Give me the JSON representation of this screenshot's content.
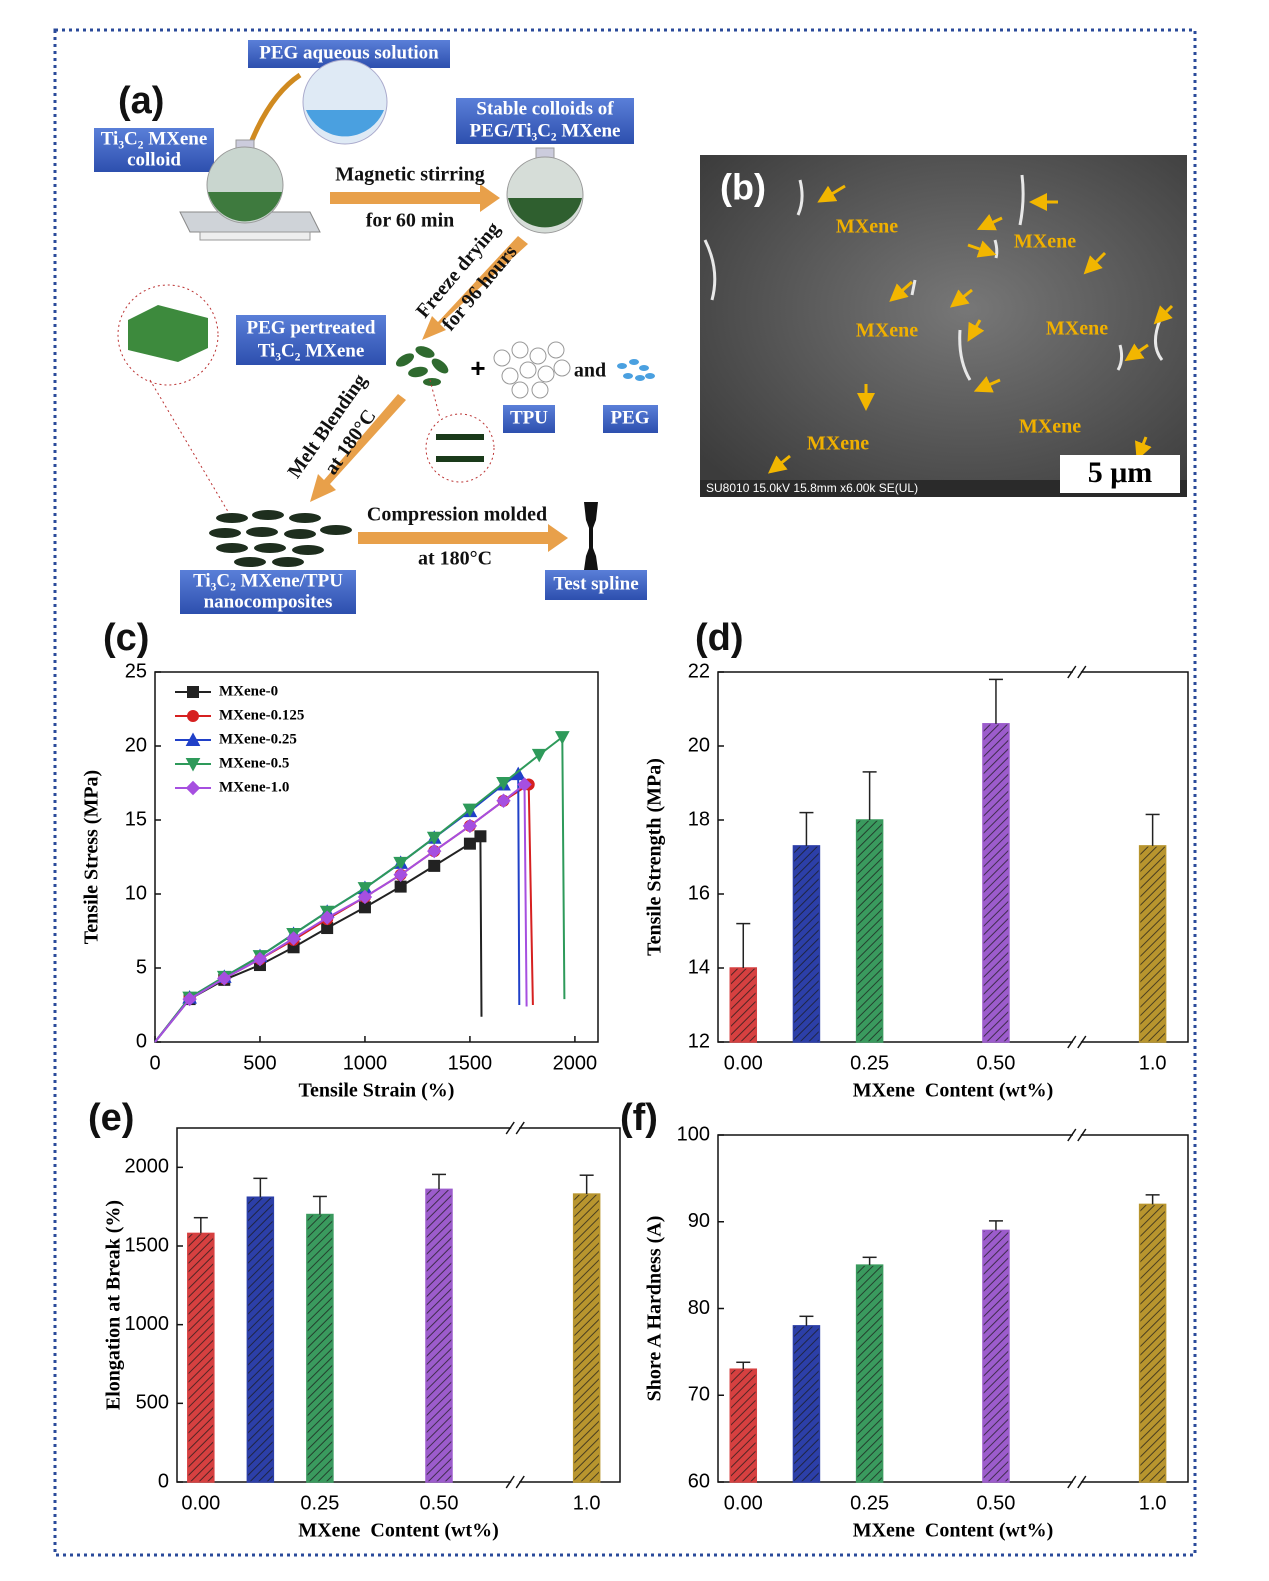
{
  "panel_a": {
    "label": "(a)",
    "peg_solution": "PEG aqueous solution",
    "mxene_colloid": [
      "Ti₃C₂ MXene",
      "colloid"
    ],
    "stable_colloids": [
      "Stable colloids of",
      "PEG/Ti₃C₂ MXene"
    ],
    "stirring": [
      "Magnetic stirring",
      "for 60 min"
    ],
    "freeze": [
      "Freeze drying",
      "for 96 hours"
    ],
    "pretreated": [
      "PEG pertreated",
      "Ti₃C₂ MXene"
    ],
    "plus": "+",
    "and": "and",
    "tpu": "TPU",
    "peg": "PEG",
    "melt": [
      "Melt Blending",
      "at 180°C"
    ],
    "compression": [
      "Compression molded",
      "at 180°C"
    ],
    "nanocomposites": [
      "Ti₃C₂ MXene/TPU",
      "nanocomposites"
    ],
    "spline": "Test spline"
  },
  "panel_b": {
    "label": "(b)",
    "annotations": [
      "MXene",
      "MXene",
      "MXene",
      "MXene",
      "MXene",
      "MXene"
    ],
    "footer": "SU8010 15.0kV 15.8mm x6.00k SE(UL)",
    "scale_bar": "5 μm"
  },
  "chart_data": [
    {
      "type": "line",
      "panel_label": "(c)",
      "x_label": "Tensile Strain (%)",
      "y_label": "Tensile Stress (MPa)",
      "xlim": [
        0,
        2110
      ],
      "ylim": [
        0,
        25
      ],
      "xticks": [
        0,
        500,
        1000,
        1500,
        2000
      ],
      "yticks": [
        0,
        5,
        10,
        15,
        20,
        25
      ],
      "legend": "upper left",
      "series": [
        {
          "name": "MXene-0",
          "color": "#222222",
          "marker": "square",
          "x": [
            0,
            165,
            330,
            500,
            660,
            820,
            1000,
            1170,
            1330,
            1500,
            1550,
            1555
          ],
          "values": [
            0,
            2.9,
            4.2,
            5.2,
            6.4,
            7.7,
            9.1,
            10.5,
            11.9,
            13.4,
            13.9,
            1.7
          ]
        },
        {
          "name": "MXene-0.125",
          "color": "#d62020",
          "marker": "circle",
          "x": [
            0,
            165,
            330,
            500,
            660,
            820,
            1000,
            1170,
            1330,
            1500,
            1660,
            1780,
            1800
          ],
          "values": [
            0,
            3.0,
            4.3,
            5.6,
            6.9,
            8.3,
            9.8,
            11.3,
            12.9,
            14.6,
            16.3,
            17.4,
            2.5
          ]
        },
        {
          "name": "MXene-0.25",
          "color": "#2040c8",
          "marker": "triangle-up",
          "x": [
            0,
            165,
            330,
            500,
            660,
            820,
            1000,
            1170,
            1330,
            1500,
            1660,
            1730,
            1735
          ],
          "values": [
            0,
            3.0,
            4.4,
            5.8,
            7.3,
            8.8,
            10.4,
            12.1,
            13.8,
            15.6,
            17.4,
            18.1,
            2.5
          ]
        },
        {
          "name": "MXene-0.5",
          "color": "#2e9a5a",
          "marker": "triangle-down",
          "x": [
            0,
            165,
            330,
            500,
            660,
            820,
            1000,
            1170,
            1330,
            1500,
            1660,
            1830,
            1940,
            1950
          ],
          "values": [
            0,
            3.0,
            4.4,
            5.8,
            7.3,
            8.8,
            10.4,
            12.1,
            13.8,
            15.7,
            17.5,
            19.4,
            20.6,
            2.9
          ]
        },
        {
          "name": "MXene-1.0",
          "color": "#a64fe0",
          "marker": "diamond",
          "x": [
            0,
            165,
            330,
            500,
            660,
            820,
            1000,
            1170,
            1330,
            1500,
            1660,
            1760,
            1770
          ],
          "values": [
            0,
            2.9,
            4.3,
            5.6,
            7.0,
            8.4,
            9.8,
            11.3,
            12.9,
            14.6,
            16.3,
            17.4,
            2.4
          ]
        }
      ]
    },
    {
      "type": "bar",
      "panel_label": "(d)",
      "x_label": "MXene  Content (wt%)",
      "y_label": "Tensile Strength (MPa)",
      "x": [
        0,
        0.125,
        0.25,
        0.5,
        1.0
      ],
      "values": [
        14.0,
        17.3,
        18.0,
        20.6,
        17.3
      ],
      "errors": [
        1.2,
        0.9,
        1.3,
        1.2,
        0.85
      ],
      "colors": [
        "#d64040",
        "#2c3fa8",
        "#3a9a5e",
        "#9c5ccc",
        "#b8952e"
      ],
      "xlim": [
        -0.05,
        1.07
      ],
      "xbreak": [
        0.66,
        0.85
      ],
      "ylim": [
        12,
        22
      ],
      "xticks": [
        {
          "value": 0,
          "label": "0.00"
        },
        0.25,
        {
          "value": 0.5,
          "label": "0.50"
        },
        {
          "value": 1.0,
          "label": "1.0"
        }
      ],
      "yticks": [
        12,
        14,
        16,
        18,
        20,
        22
      ]
    },
    {
      "type": "bar",
      "panel_label": "(e)",
      "x_label": "MXene  Content (wt%)",
      "y_label": "Elongation at Break (%)",
      "x": [
        0,
        0.125,
        0.25,
        0.5,
        1.0
      ],
      "values": [
        1580,
        1810,
        1700,
        1860,
        1830
      ],
      "errors": [
        100,
        120,
        115,
        95,
        120
      ],
      "colors": [
        "#d64040",
        "#2c3fa8",
        "#3a9a5e",
        "#9c5ccc",
        "#b8952e"
      ],
      "xlim": [
        -0.05,
        1.07
      ],
      "xbreak": [
        0.66,
        0.85
      ],
      "ylim": [
        0,
        2250
      ],
      "xticks": [
        {
          "value": 0,
          "label": "0.00"
        },
        0.25,
        {
          "value": 0.5,
          "label": "0.50"
        },
        {
          "value": 1.0,
          "label": "1.0"
        }
      ],
      "yticks": [
        0,
        500,
        1000,
        1500,
        2000
      ]
    },
    {
      "type": "bar",
      "panel_label": "(f)",
      "x_label": "MXene  Content (wt%)",
      "y_label": "Shore A Hardness (A)",
      "x": [
        0,
        0.125,
        0.25,
        0.5,
        1.0
      ],
      "values": [
        73,
        78,
        85,
        89,
        92
      ],
      "errors": [
        0.8,
        1.1,
        0.9,
        1.1,
        1.1
      ],
      "colors": [
        "#d64040",
        "#2c3fa8",
        "#3a9a5e",
        "#9c5ccc",
        "#b8952e"
      ],
      "xlim": [
        -0.05,
        1.07
      ],
      "xbreak": [
        0.66,
        0.85
      ],
      "ylim": [
        60,
        100
      ],
      "xticks": [
        {
          "value": 0,
          "label": "0.00"
        },
        0.25,
        {
          "value": 0.5,
          "label": "0.50"
        },
        {
          "value": 1.0,
          "label": "1.0"
        }
      ],
      "yticks": [
        60,
        70,
        80,
        90,
        100
      ]
    }
  ]
}
